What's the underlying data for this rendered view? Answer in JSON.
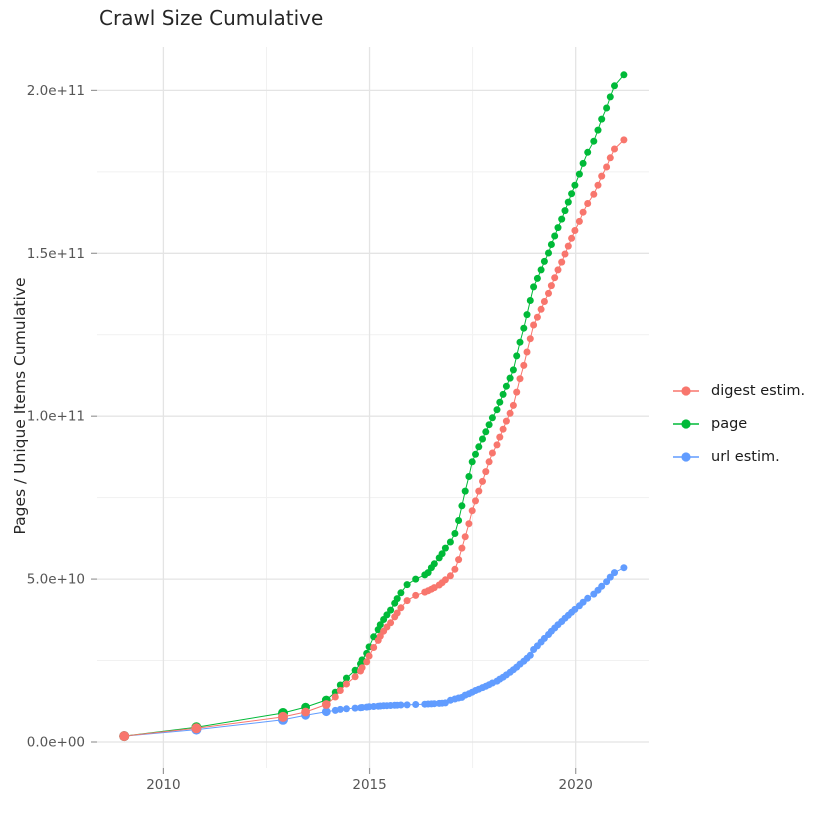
{
  "title": "Crawl Size Cumulative",
  "axes": {
    "y_label": "Pages / Unique Items Cumulative",
    "y_ticks": [
      "0.0e+00",
      "5.0e+10",
      "1.0e+11",
      "1.5e+11",
      "2.0e+11"
    ],
    "x_ticks": [
      "2010",
      "2015",
      "2020"
    ]
  },
  "legend": {
    "items": [
      {
        "label": "digest estim.",
        "color": "#F8766D"
      },
      {
        "label": "page",
        "color": "#00BA38"
      },
      {
        "label": "url estim.",
        "color": "#619CFF"
      }
    ]
  },
  "colors": {
    "digest": "#F8766D",
    "page": "#00BA38",
    "url": "#619CFF",
    "grid_major": "#E4E4E4",
    "grid_minor": "#F1F1F1",
    "tick": "#999999",
    "tick_label": "#555555"
  },
  "chart_data": {
    "type": "line",
    "title": "Crawl Size Cumulative",
    "xlabel": "",
    "ylabel": "Pages / Unique Items Cumulative",
    "x_range": [
      2008.4,
      2021.8
    ],
    "y_range": [
      -8500000000.0,
      212000000000.0
    ],
    "grid": true,
    "legend_position": "right",
    "x_major_ticks": [
      2010,
      2015,
      2020
    ],
    "x_minor_gridlines": [
      2012.5,
      2017.5
    ],
    "y_major_ticks": [
      0,
      50000000000.0,
      100000000000.0,
      150000000000.0,
      200000000000.0
    ],
    "y_minor_gridlines": [
      25000000000.0,
      75000000000.0,
      125000000000.0,
      175000000000.0
    ],
    "x": [
      2009.05,
      2010.8,
      2012.9,
      2013.45,
      2013.95,
      2014.17,
      2014.29,
      2014.44,
      2014.65,
      2014.78,
      2014.82,
      2014.93,
      2014.99,
      2015.1,
      2015.21,
      2015.26,
      2015.34,
      2015.42,
      2015.51,
      2015.61,
      2015.67,
      2015.76,
      2015.91,
      2016.12,
      2016.34,
      2016.42,
      2016.5,
      2016.57,
      2016.69,
      2016.76,
      2016.84,
      2016.96,
      2017.07,
      2017.16,
      2017.24,
      2017.32,
      2017.41,
      2017.49,
      2017.57,
      2017.65,
      2017.74,
      2017.82,
      2017.9,
      2017.98,
      2018.09,
      2018.16,
      2018.24,
      2018.32,
      2018.41,
      2018.49,
      2018.57,
      2018.65,
      2018.74,
      2018.82,
      2018.9,
      2018.98,
      2019.07,
      2019.16,
      2019.24,
      2019.34,
      2019.41,
      2019.49,
      2019.57,
      2019.66,
      2019.74,
      2019.82,
      2019.9,
      2019.98,
      2020.09,
      2020.18,
      2020.29,
      2020.44,
      2020.54,
      2020.63,
      2020.75,
      2020.84,
      2020.94,
      2021.17
    ],
    "series": [
      {
        "name": "digest estim.",
        "color": "#F8766D",
        "values": [
          1800000000.0,
          4200000000.0,
          7700000000.0,
          9200000000.0,
          11500000000.0,
          13800000000.0,
          15800000000.0,
          17800000000.0,
          20000000000.0,
          21800000000.0,
          22800000000.0,
          24600000000.0,
          26400000000.0,
          29000000000.0,
          31200000000.0,
          32500000000.0,
          34000000000.0,
          35300000000.0,
          36600000000.0,
          38400000000.0,
          39600000000.0,
          41200000000.0,
          43400000000.0,
          45000000000.0,
          46000000000.0,
          46400000000.0,
          46900000000.0,
          47400000000.0,
          48200000000.0,
          48900000000.0,
          49800000000.0,
          51000000000.0,
          53000000000.0,
          56000000000.0,
          59500000000.0,
          63000000000.0,
          67000000000.0,
          71000000000.0,
          74000000000.0,
          77000000000.0,
          80000000000.0,
          83000000000.0,
          86000000000.0,
          88700000000.0,
          91200000000.0,
          93600000000.0,
          96000000000.0,
          98500000000.0,
          100900000000.0,
          103300000000.0,
          107400000000.0,
          111500000000.0,
          115600000000.0,
          119700000000.0,
          123800000000.0,
          128000000000.0,
          130400000000.0,
          132800000000.0,
          135200000000.0,
          137700000000.0,
          140100000000.0,
          142500000000.0,
          144900000000.0,
          147300000000.0,
          149800000000.0,
          152200000000.0,
          154600000000.0,
          157000000000.0,
          159800000000.0,
          162600000000.0,
          165300000000.0,
          168100000000.0,
          170900000000.0,
          173700000000.0,
          176500000000.0,
          179300000000.0,
          182000000000.0,
          184800000000.0
        ]
      },
      {
        "name": "page",
        "color": "#00BA38",
        "values": [
          1800000000.0,
          4500000000.0,
          8900000000.0,
          10700000000.0,
          12900000000.0,
          15300000000.0,
          17500000000.0,
          19600000000.0,
          22000000000.0,
          24000000000.0,
          25200000000.0,
          27200000000.0,
          29200000000.0,
          32300000000.0,
          34500000000.0,
          36000000000.0,
          37600000000.0,
          39000000000.0,
          40500000000.0,
          42600000000.0,
          44000000000.0,
          45800000000.0,
          48300000000.0,
          50000000000.0,
          51300000000.0,
          52000000000.0,
          53500000000.0,
          54700000000.0,
          56500000000.0,
          57800000000.0,
          59500000000.0,
          61400000000.0,
          64000000000.0,
          68000000000.0,
          72500000000.0,
          77000000000.0,
          81500000000.0,
          86000000000.0,
          88300000000.0,
          90600000000.0,
          93000000000.0,
          95200000000.0,
          97400000000.0,
          99500000000.0,
          102000000000.0,
          104300000000.0,
          106700000000.0,
          109200000000.0,
          111700000000.0,
          114200000000.0,
          118500000000.0,
          122700000000.0,
          127000000000.0,
          131200000000.0,
          135500000000.0,
          139700000000.0,
          142300000000.0,
          144900000000.0,
          147500000000.0,
          150100000000.0,
          152700000000.0,
          155300000000.0,
          157900000000.0,
          160500000000.0,
          163100000000.0,
          165700000000.0,
          168300000000.0,
          170900000000.0,
          174300000000.0,
          177600000000.0,
          181000000000.0,
          184400000000.0,
          187800000000.0,
          191200000000.0,
          194600000000.0,
          198000000000.0,
          201400000000.0,
          204800000000.0
        ]
      },
      {
        "name": "url estim.",
        "color": "#619CFF",
        "values": [
          1800000000.0,
          3800000000.0,
          6800000000.0,
          8200000000.0,
          9300000000.0,
          9700000000.0,
          10000000000.0,
          10200000000.0,
          10400000000.0,
          10500000000.0,
          10600000000.0,
          10700000000.0,
          10800000000.0,
          10900000000.0,
          11000000000.0,
          11050000000.0,
          11100000000.0,
          11150000000.0,
          11200000000.0,
          11250000000.0,
          11300000000.0,
          11350000000.0,
          11400000000.0,
          11500000000.0,
          11600000000.0,
          11650000000.0,
          11700000000.0,
          11750000000.0,
          11850000000.0,
          11900000000.0,
          12000000000.0,
          12800000000.0,
          13200000000.0,
          13500000000.0,
          13700000000.0,
          14400000000.0,
          14800000000.0,
          15300000000.0,
          15800000000.0,
          16200000000.0,
          16700000000.0,
          17100000000.0,
          17600000000.0,
          18100000000.0,
          18700000000.0,
          19300000000.0,
          19900000000.0,
          20600000000.0,
          21400000000.0,
          22200000000.0,
          23000000000.0,
          23900000000.0,
          24800000000.0,
          25700000000.0,
          26600000000.0,
          28400000000.0,
          29500000000.0,
          30700000000.0,
          31800000000.0,
          33000000000.0,
          34000000000.0,
          35000000000.0,
          36000000000.0,
          37000000000.0,
          38000000000.0,
          38900000000.0,
          39800000000.0,
          40700000000.0,
          41800000000.0,
          42900000000.0,
          44100000000.0,
          45400000000.0,
          46600000000.0,
          47800000000.0,
          49200000000.0,
          50600000000.0,
          52000000000.0,
          53500000000.0
        ]
      }
    ]
  }
}
